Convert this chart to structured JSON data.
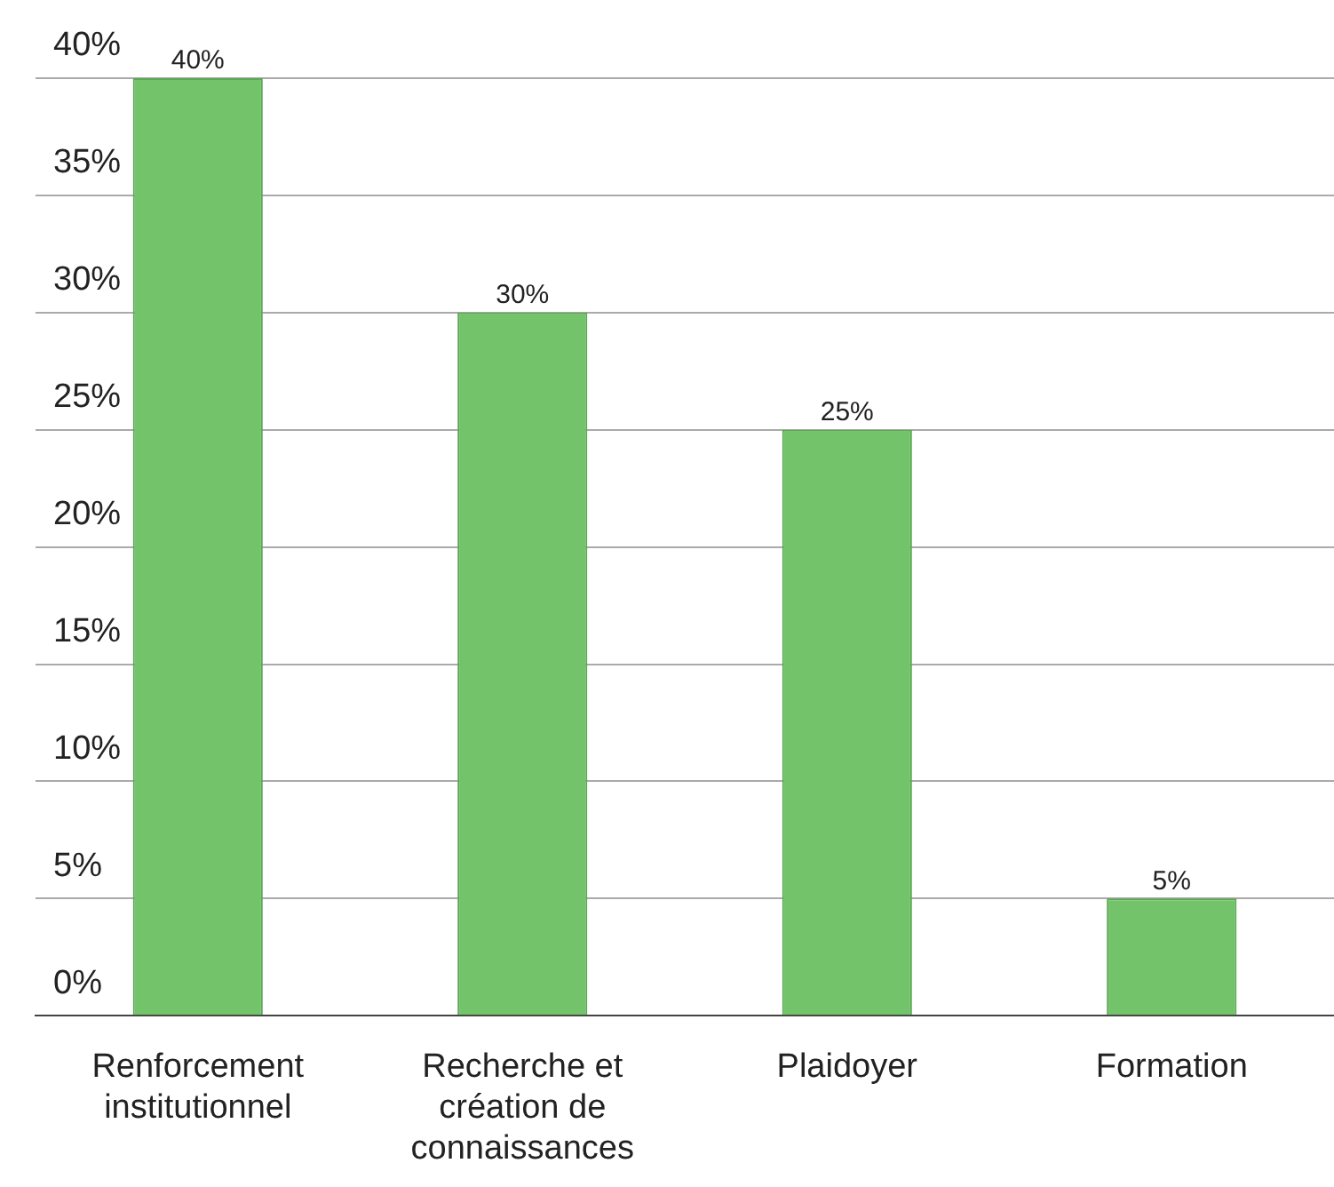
{
  "chart_data": {
    "type": "bar",
    "categories": [
      "Renforcement institutionnel",
      "Recherche et création de connaissances",
      "Plaidoyer",
      "Formation"
    ],
    "values": [
      40,
      30,
      25,
      5
    ],
    "value_labels": [
      "40%",
      "30%",
      "25%",
      "5%"
    ],
    "color": "#73c36a",
    "ylim": [
      0,
      40
    ],
    "yticks": [
      {
        "value": 0,
        "label": "0%"
      },
      {
        "value": 5,
        "label": "5%"
      },
      {
        "value": 10,
        "label": "10%"
      },
      {
        "value": 15,
        "label": "15%"
      },
      {
        "value": 20,
        "label": "20%"
      },
      {
        "value": 25,
        "label": "25%"
      },
      {
        "value": 30,
        "label": "30%"
      },
      {
        "value": 35,
        "label": "35%"
      },
      {
        "value": 40,
        "label": "40%"
      }
    ],
    "grid": "y",
    "legend": false
  }
}
